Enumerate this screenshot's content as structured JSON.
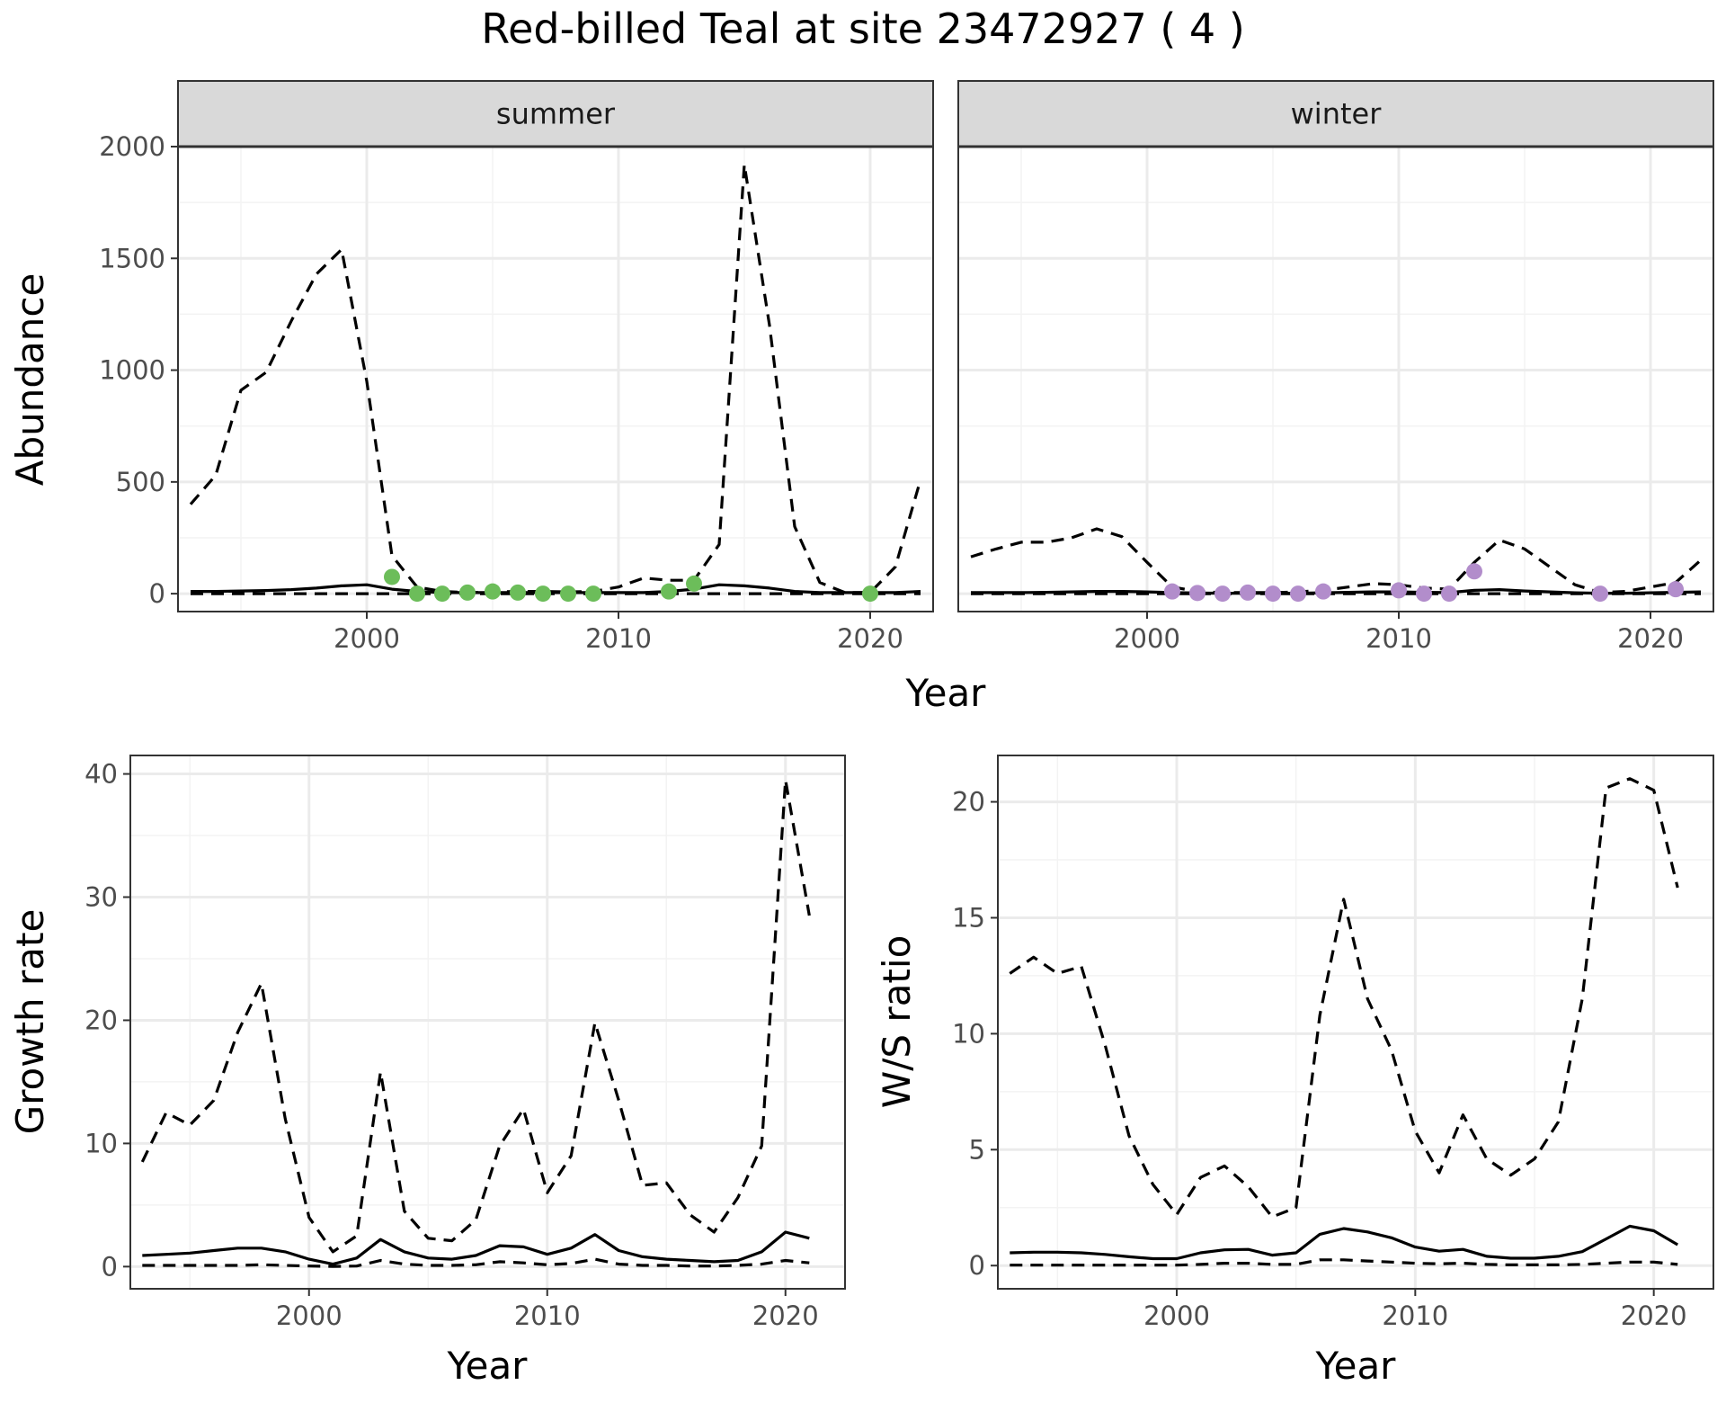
{
  "title": "Red-billed Teal at site 23472927 ( 4 )",
  "chart_data": [
    {
      "type": "line",
      "facet": "summer",
      "xlabel": "Year",
      "ylabel": "Abundance",
      "xlim": [
        1992.5,
        2022.5
      ],
      "ylim": [
        -80,
        2000
      ],
      "x_ticks": [
        2000,
        2010,
        2020
      ],
      "y_ticks": [
        0,
        500,
        1000,
        1500,
        2000
      ],
      "point_color": "#6cbd5a",
      "series": [
        {
          "style": "dashed",
          "x": [
            1993,
            1994,
            1995,
            1996,
            1997,
            1998,
            1999,
            2000,
            2001,
            2002,
            2003,
            2004,
            2005,
            2006,
            2007,
            2008,
            2009,
            2010,
            2011,
            2012,
            2013,
            2014,
            2015,
            2016,
            2017,
            2018,
            2019,
            2020,
            2021,
            2022
          ],
          "y": [
            400,
            530,
            910,
            990,
            1220,
            1430,
            1540,
            950,
            170,
            30,
            10,
            5,
            8,
            10,
            10,
            8,
            10,
            30,
            70,
            60,
            60,
            220,
            1920,
            1200,
            300,
            50,
            5,
            5,
            120,
            510
          ]
        },
        {
          "style": "solid",
          "x": [
            1993,
            1994,
            1995,
            1996,
            1997,
            1998,
            1999,
            2000,
            2001,
            2002,
            2003,
            2004,
            2005,
            2006,
            2007,
            2008,
            2009,
            2010,
            2011,
            2012,
            2013,
            2014,
            2015,
            2016,
            2017,
            2018,
            2019,
            2020,
            2021,
            2022
          ],
          "y": [
            10,
            10,
            12,
            14,
            18,
            25,
            35,
            40,
            20,
            10,
            5,
            5,
            5,
            5,
            5,
            5,
            5,
            5,
            5,
            10,
            20,
            40,
            35,
            25,
            10,
            5,
            5,
            5,
            5,
            10
          ]
        },
        {
          "style": "dashed",
          "x": [
            1993,
            1994,
            1995,
            1996,
            1997,
            1998,
            1999,
            2000,
            2001,
            2002,
            2003,
            2004,
            2005,
            2006,
            2007,
            2008,
            2009,
            2010,
            2011,
            2012,
            2013,
            2014,
            2015,
            2016,
            2017,
            2018,
            2019,
            2020,
            2021,
            2022
          ],
          "y": [
            0,
            0,
            0,
            0,
            0,
            0,
            0,
            0,
            0,
            0,
            0,
            0,
            0,
            0,
            0,
            0,
            0,
            0,
            0,
            0,
            0,
            0,
            0,
            0,
            0,
            0,
            0,
            0,
            0,
            0
          ]
        }
      ],
      "points": {
        "x": [
          2001,
          2002,
          2003,
          2004,
          2005,
          2006,
          2007,
          2008,
          2009,
          2012,
          2013,
          2020
        ],
        "y": [
          75,
          0,
          0,
          5,
          10,
          5,
          0,
          0,
          0,
          10,
          45,
          0
        ]
      }
    },
    {
      "type": "line",
      "facet": "winter",
      "xlabel": "Year",
      "ylabel": "",
      "xlim": [
        1992.5,
        2022.5
      ],
      "ylim": [
        -80,
        2000
      ],
      "x_ticks": [
        2000,
        2010,
        2020
      ],
      "y_ticks": [
        0,
        500,
        1000,
        1500,
        2000
      ],
      "point_color": "#b28dcb",
      "series": [
        {
          "style": "dashed",
          "x": [
            1993,
            1994,
            1995,
            1996,
            1997,
            1998,
            1999,
            2000,
            2001,
            2002,
            2003,
            2004,
            2005,
            2006,
            2007,
            2008,
            2009,
            2010,
            2011,
            2012,
            2013,
            2014,
            2015,
            2016,
            2017,
            2018,
            2019,
            2020,
            2021,
            2022
          ],
          "y": [
            165,
            200,
            230,
            230,
            250,
            290,
            255,
            140,
            30,
            10,
            5,
            5,
            5,
            8,
            15,
            30,
            45,
            40,
            25,
            20,
            140,
            240,
            200,
            120,
            40,
            5,
            10,
            30,
            50,
            150
          ]
        },
        {
          "style": "solid",
          "x": [
            1993,
            1994,
            1995,
            1996,
            1997,
            1998,
            1999,
            2000,
            2001,
            2002,
            2003,
            2004,
            2005,
            2006,
            2007,
            2008,
            2009,
            2010,
            2011,
            2012,
            2013,
            2014,
            2015,
            2016,
            2017,
            2018,
            2019,
            2020,
            2021,
            2022
          ],
          "y": [
            5,
            5,
            5,
            6,
            8,
            10,
            10,
            8,
            5,
            3,
            2,
            2,
            2,
            2,
            4,
            6,
            8,
            8,
            6,
            5,
            15,
            18,
            12,
            8,
            4,
            2,
            2,
            4,
            6,
            8
          ]
        },
        {
          "style": "dashed",
          "x": [
            1993,
            1994,
            1995,
            1996,
            1997,
            1998,
            1999,
            2000,
            2001,
            2002,
            2003,
            2004,
            2005,
            2006,
            2007,
            2008,
            2009,
            2010,
            2011,
            2012,
            2013,
            2014,
            2015,
            2016,
            2017,
            2018,
            2019,
            2020,
            2021,
            2022
          ],
          "y": [
            0,
            0,
            0,
            0,
            0,
            0,
            0,
            0,
            0,
            0,
            0,
            0,
            0,
            0,
            0,
            0,
            0,
            0,
            0,
            0,
            0,
            0,
            0,
            0,
            0,
            0,
            0,
            0,
            0,
            0
          ]
        }
      ],
      "points": {
        "x": [
          2001,
          2002,
          2003,
          2004,
          2005,
          2006,
          2007,
          2010,
          2011,
          2012,
          2013,
          2018,
          2021
        ],
        "y": [
          10,
          3,
          0,
          5,
          0,
          0,
          10,
          15,
          0,
          0,
          100,
          0,
          20
        ]
      }
    },
    {
      "type": "line",
      "xlabel": "Year",
      "ylabel": "Growth rate",
      "xlim": [
        1992.5,
        2022.5
      ],
      "ylim": [
        -1.8,
        41.5
      ],
      "x_ticks": [
        2000,
        2010,
        2020
      ],
      "y_ticks": [
        0,
        10,
        20,
        30,
        40
      ],
      "series": [
        {
          "style": "dashed",
          "x": [
            1993,
            1994,
            1995,
            1996,
            1997,
            1998,
            1999,
            2000,
            2001,
            2002,
            2003,
            2004,
            2005,
            2006,
            2007,
            2008,
            2009,
            2010,
            2011,
            2012,
            2013,
            2014,
            2015,
            2016,
            2017,
            2018,
            2019,
            2020,
            2021
          ],
          "y": [
            8.5,
            12.5,
            11.5,
            13.5,
            19,
            23,
            12,
            4,
            1.2,
            2.5,
            15.8,
            4.5,
            2.3,
            2.1,
            3.8,
            9.8,
            12.8,
            6,
            9,
            19.8,
            13.5,
            6.6,
            6.8,
            4.2,
            2.8,
            5.6,
            9.8,
            39.5,
            28.5
          ]
        },
        {
          "style": "solid",
          "x": [
            1993,
            1994,
            1995,
            1996,
            1997,
            1998,
            1999,
            2000,
            2001,
            2002,
            2003,
            2004,
            2005,
            2006,
            2007,
            2008,
            2009,
            2010,
            2011,
            2012,
            2013,
            2014,
            2015,
            2016,
            2017,
            2018,
            2019,
            2020,
            2021
          ],
          "y": [
            0.9,
            1.0,
            1.1,
            1.3,
            1.5,
            1.5,
            1.2,
            0.6,
            0.2,
            0.7,
            2.2,
            1.2,
            0.7,
            0.6,
            0.9,
            1.7,
            1.6,
            1.0,
            1.5,
            2.6,
            1.3,
            0.8,
            0.6,
            0.5,
            0.4,
            0.5,
            1.2,
            2.8,
            2.3
          ]
        },
        {
          "style": "dashed",
          "x": [
            1993,
            1994,
            1995,
            1996,
            1997,
            1998,
            1999,
            2000,
            2001,
            2002,
            2003,
            2004,
            2005,
            2006,
            2007,
            2008,
            2009,
            2010,
            2011,
            2012,
            2013,
            2014,
            2015,
            2016,
            2017,
            2018,
            2019,
            2020,
            2021
          ],
          "y": [
            0.1,
            0.1,
            0.1,
            0.1,
            0.1,
            0.15,
            0.1,
            0.05,
            0.02,
            0.05,
            0.5,
            0.2,
            0.1,
            0.1,
            0.15,
            0.4,
            0.3,
            0.15,
            0.25,
            0.6,
            0.2,
            0.1,
            0.1,
            0.05,
            0.05,
            0.1,
            0.2,
            0.5,
            0.3
          ]
        }
      ]
    },
    {
      "type": "line",
      "xlabel": "Year",
      "ylabel": "W/S ratio",
      "xlim": [
        1992.5,
        2022.5
      ],
      "ylim": [
        -1.0,
        22
      ],
      "x_ticks": [
        2000,
        2010,
        2020
      ],
      "y_ticks": [
        0,
        5,
        10,
        15,
        20
      ],
      "series": [
        {
          "style": "dashed",
          "x": [
            1993,
            1994,
            1995,
            1996,
            1997,
            1998,
            1999,
            2000,
            2001,
            2002,
            2003,
            2004,
            2005,
            2006,
            2007,
            2008,
            2009,
            2010,
            2011,
            2012,
            2013,
            2014,
            2015,
            2016,
            2017,
            2018,
            2019,
            2020,
            2021
          ],
          "y": [
            12.6,
            13.3,
            12.6,
            12.9,
            9.5,
            5.6,
            3.5,
            2.2,
            3.8,
            4.3,
            3.4,
            2.1,
            2.5,
            10.8,
            15.8,
            11.5,
            9.3,
            5.8,
            4.0,
            6.5,
            4.6,
            3.9,
            4.6,
            6.2,
            11.5,
            20.6,
            21.0,
            20.5,
            16.3
          ]
        },
        {
          "style": "solid",
          "x": [
            1993,
            1994,
            1995,
            1996,
            1997,
            1998,
            1999,
            2000,
            2001,
            2002,
            2003,
            2004,
            2005,
            2006,
            2007,
            2008,
            2009,
            2010,
            2011,
            2012,
            2013,
            2014,
            2015,
            2016,
            2017,
            2018,
            2019,
            2020,
            2021
          ],
          "y": [
            0.55,
            0.58,
            0.58,
            0.55,
            0.48,
            0.38,
            0.3,
            0.3,
            0.55,
            0.68,
            0.7,
            0.45,
            0.55,
            1.35,
            1.6,
            1.45,
            1.2,
            0.8,
            0.62,
            0.7,
            0.4,
            0.32,
            0.32,
            0.4,
            0.6,
            1.15,
            1.7,
            1.5,
            0.9
          ]
        },
        {
          "style": "dashed",
          "x": [
            1993,
            1994,
            1995,
            1996,
            1997,
            1998,
            1999,
            2000,
            2001,
            2002,
            2003,
            2004,
            2005,
            2006,
            2007,
            2008,
            2009,
            2010,
            2011,
            2012,
            2013,
            2014,
            2015,
            2016,
            2017,
            2018,
            2019,
            2020,
            2021
          ],
          "y": [
            0.02,
            0.02,
            0.02,
            0.02,
            0.02,
            0.02,
            0.02,
            0.02,
            0.05,
            0.1,
            0.1,
            0.05,
            0.05,
            0.25,
            0.25,
            0.2,
            0.15,
            0.1,
            0.08,
            0.1,
            0.05,
            0.03,
            0.03,
            0.03,
            0.05,
            0.1,
            0.15,
            0.15,
            0.05
          ]
        }
      ]
    }
  ]
}
